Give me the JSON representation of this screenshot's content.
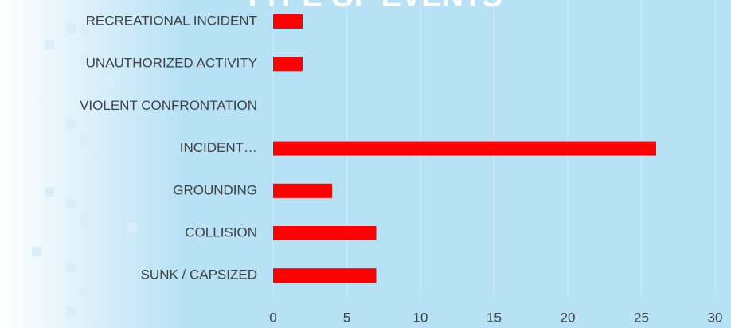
{
  "chart_data": {
    "type": "bar",
    "orientation": "horizontal",
    "title": "TYPE OF EVENTS",
    "categories": [
      "RECREATIONAL INCIDENT",
      "UNAUTHORIZED ACTIVITY",
      "VIOLENT CONFRONTATION",
      "INCIDENT…",
      "GROUNDING",
      "COLLISION",
      "SUNK / CAPSIZED"
    ],
    "values": [
      2,
      2,
      0,
      26,
      4,
      7,
      7
    ],
    "color": "#ff0000",
    "xlim": [
      0,
      30
    ],
    "xticks": [
      0,
      5,
      10,
      15,
      20,
      25,
      30
    ],
    "grid": true
  }
}
